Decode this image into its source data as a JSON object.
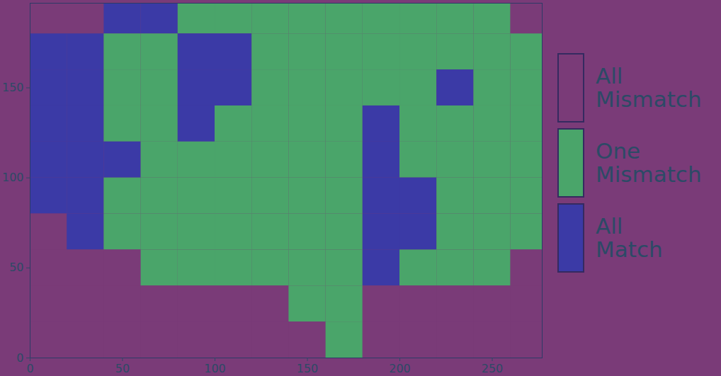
{
  "chart_data": {
    "type": "heatmap",
    "xlim": [
      0,
      277
    ],
    "ylim": [
      0,
      197
    ],
    "xticks": [
      0,
      50,
      100,
      150,
      200,
      250
    ],
    "yticks": [
      0,
      50,
      100,
      150
    ],
    "x_edges": [
      0,
      20,
      40,
      60,
      80,
      100,
      120,
      140,
      160,
      180,
      200,
      220,
      240,
      260,
      280
    ],
    "y_edges": [
      200,
      180,
      160,
      140,
      120,
      100,
      80,
      60,
      40,
      20,
      0
    ],
    "classes": [
      {
        "name": "All Match",
        "color": "#3b3aa6"
      },
      {
        "name": "One Mismatch",
        "color": "#4aa56a"
      },
      {
        "name": "All Mismatch",
        "color": "#7a3b78"
      }
    ],
    "legend_order": [
      "All Mismatch",
      "One Mismatch",
      "All Match"
    ],
    "cells": [
      [
        2,
        2,
        0,
        0,
        1,
        1,
        1,
        1,
        1,
        1,
        1,
        1,
        1,
        2
      ],
      [
        0,
        0,
        1,
        1,
        0,
        0,
        1,
        1,
        1,
        1,
        1,
        1,
        1,
        1
      ],
      [
        0,
        0,
        1,
        1,
        0,
        0,
        1,
        1,
        1,
        1,
        1,
        0,
        1,
        1
      ],
      [
        0,
        0,
        1,
        1,
        0,
        1,
        1,
        1,
        1,
        0,
        1,
        1,
        1,
        1
      ],
      [
        0,
        0,
        0,
        1,
        1,
        1,
        1,
        1,
        1,
        0,
        1,
        1,
        1,
        1
      ],
      [
        0,
        0,
        1,
        1,
        1,
        1,
        1,
        1,
        1,
        0,
        0,
        1,
        1,
        1
      ],
      [
        2,
        0,
        1,
        1,
        1,
        1,
        1,
        1,
        1,
        0,
        0,
        1,
        1,
        1
      ],
      [
        2,
        2,
        2,
        1,
        1,
        1,
        1,
        1,
        1,
        0,
        1,
        1,
        1,
        2
      ],
      [
        2,
        2,
        2,
        2,
        2,
        2,
        2,
        1,
        1,
        2,
        2,
        2,
        2,
        2
      ],
      [
        2,
        2,
        2,
        2,
        2,
        2,
        2,
        2,
        1,
        2,
        2,
        2,
        2,
        2
      ]
    ],
    "legend": "right",
    "grid": false
  }
}
